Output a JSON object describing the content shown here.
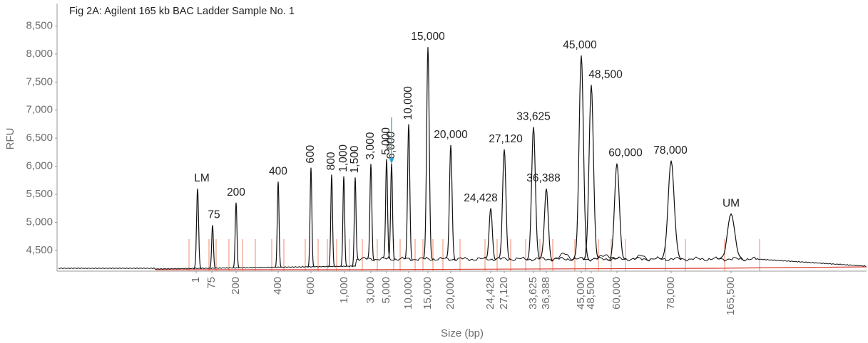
{
  "chart_data": {
    "type": "line",
    "title": "Fig 2A: Agilent 165 kb BAC Ladder Sample No. 1",
    "xlabel": "Size (bp)",
    "ylabel": "RFU",
    "categories": [
      "LM",
      "75",
      "200",
      "400",
      "600",
      "800",
      "1,000",
      "1,500",
      "3,000",
      "5,000",
      "6,000",
      "10,000",
      "15,000",
      "20,000",
      "24,428",
      "27,120",
      "33,625",
      "36,388",
      "45,000",
      "48,500",
      "60,000",
      "78,000",
      "UM"
    ],
    "values": [
      5600,
      4950,
      5350,
      5725,
      5975,
      5850,
      5820,
      5800,
      6040,
      6125,
      6050,
      6750,
      8125,
      6375,
      5250,
      6300,
      6700,
      5600,
      7975,
      7450,
      6050,
      6100,
      5150
    ],
    "color": "#111111",
    "ylim": [
      4130,
      8900
    ],
    "yticks": [
      {
        "value": 4500,
        "label": "4,500"
      },
      {
        "value": 5000,
        "label": "5,000"
      },
      {
        "value": 5500,
        "label": "5,500"
      },
      {
        "value": 6000,
        "label": "6,000"
      },
      {
        "value": 6500,
        "label": "6,500"
      },
      {
        "value": 7000,
        "label": "7,000"
      },
      {
        "value": 7500,
        "label": "7,500"
      },
      {
        "value": 8000,
        "label": "8,000"
      },
      {
        "value": 8500,
        "label": "8,500"
      }
    ],
    "xticks": [
      1,
      75,
      200,
      400,
      600,
      {
        "value": 1000,
        "label": "1,000"
      },
      {
        "value": 3000,
        "label": "3,000"
      },
      {
        "value": 5000,
        "label": "5,000"
      },
      {
        "value": 10000,
        "label": "10,000"
      },
      {
        "value": 15000,
        "label": "15,000"
      },
      {
        "value": 20000,
        "label": "20,000"
      },
      {
        "value": 24428,
        "label": "24,428"
      },
      {
        "value": 27120,
        "label": "27,120"
      },
      {
        "value": 33625,
        "label": "33,625"
      },
      {
        "value": 36388,
        "label": "36,388"
      },
      {
        "value": 45000,
        "label": "45,000"
      },
      {
        "value": 48500,
        "label": "48,500"
      },
      {
        "value": 60000,
        "label": "60,000"
      },
      {
        "value": 78000,
        "label": "78,000"
      },
      {
        "value": 165500,
        "label": "165,500"
      }
    ]
  }
}
